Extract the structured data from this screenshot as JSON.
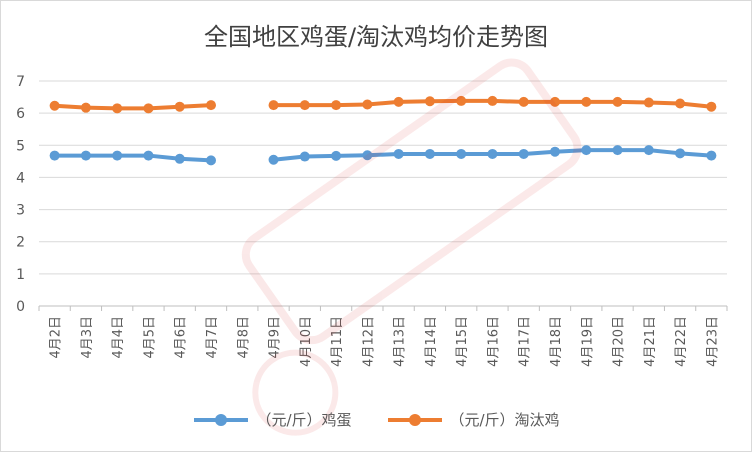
{
  "chart_data": {
    "type": "line",
    "title": "全国地区鸡蛋/淘汰鸡均价走势图",
    "categories": [
      "4月2日",
      "4月3日",
      "4月4日",
      "4月5日",
      "4月6日",
      "4月7日",
      "4月8日",
      "4月9日",
      "4月10日",
      "4月11日",
      "4月12日",
      "4月13日",
      "4月14日",
      "4月15日",
      "4月16日",
      "4月17日",
      "4月18日",
      "4月19日",
      "4月20日",
      "4月21日",
      "4月22日",
      "4月23日"
    ],
    "ylim": [
      0,
      7
    ],
    "yticks": [
      0,
      1,
      2,
      3,
      4,
      5,
      6,
      7
    ],
    "grid": true,
    "legend_position": "bottom",
    "series": [
      {
        "name": "（元/斤）鸡蛋",
        "color": "#5b9bd5",
        "values": [
          4.68,
          4.68,
          4.68,
          4.68,
          4.58,
          4.53,
          null,
          4.55,
          4.65,
          4.67,
          4.69,
          4.73,
          4.73,
          4.73,
          4.73,
          4.73,
          4.8,
          4.85,
          4.85,
          4.85,
          4.75,
          4.68
        ]
      },
      {
        "name": "（元/斤）淘汰鸡",
        "color": "#ed7d31",
        "values": [
          6.23,
          6.17,
          6.15,
          6.15,
          6.2,
          6.25,
          null,
          6.25,
          6.25,
          6.25,
          6.27,
          6.35,
          6.37,
          6.38,
          6.38,
          6.35,
          6.35,
          6.35,
          6.35,
          6.33,
          6.3,
          6.2
        ]
      }
    ]
  }
}
